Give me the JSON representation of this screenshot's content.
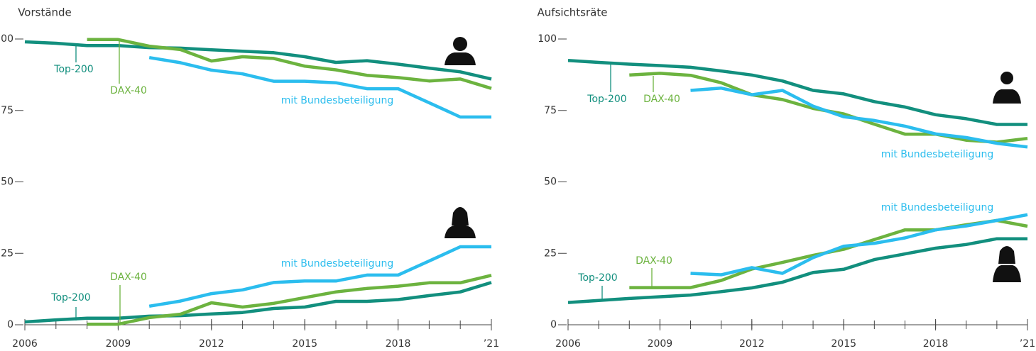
{
  "chart_data": [
    {
      "type": "line",
      "title": "Vorstände",
      "x": [
        2006,
        2007,
        2008,
        2009,
        2010,
        2011,
        2012,
        2013,
        2014,
        2015,
        2016,
        2017,
        2018,
        2019,
        2020,
        2021
      ],
      "xlim": [
        2006,
        2021
      ],
      "xticks": [
        2006,
        2009,
        2012,
        2015,
        2018,
        {
          "value": 2021,
          "label": "’21"
        }
      ],
      "ylim": [
        0,
        100
      ],
      "yticks": [
        0,
        25,
        50,
        75,
        100
      ],
      "series": [
        {
          "name": "Top-200",
          "color": "#128f7e",
          "values": [
            99,
            98.5,
            97.7,
            97.7,
            97,
            96.8,
            96.2,
            95.7,
            95.2,
            93.8,
            91.8,
            92.4,
            91.2,
            89.8,
            88.5,
            86
          ]
        },
        {
          "name": "DAX-40",
          "color": "#6cb33f",
          "values": [
            null,
            null,
            99.8,
            99.8,
            97.5,
            96.3,
            92.3,
            93.8,
            93.2,
            90.5,
            89.2,
            87.3,
            86.5,
            85.3,
            86,
            82.7
          ]
        },
        {
          "name": "mit Bundesbeteiligung",
          "color": "#2bbdee",
          "values": [
            null,
            null,
            null,
            null,
            93.5,
            91.7,
            89.1,
            87.8,
            85.2,
            85.2,
            84.7,
            82.6,
            82.6,
            77.7,
            72.7,
            72.7
          ]
        },
        {
          "name": "Top-200",
          "color": "#128f7e",
          "values": [
            1,
            1.7,
            2.3,
            2.3,
            3,
            3.2,
            3.8,
            4.3,
            5.7,
            6.2,
            8.2,
            8.2,
            8.8,
            10.2,
            11.5,
            14.8
          ]
        },
        {
          "name": "DAX-40",
          "color": "#6cb33f",
          "values": [
            null,
            null,
            0.2,
            0.2,
            2.5,
            3.7,
            7.7,
            6.2,
            7.5,
            9.5,
            11.5,
            12.7,
            13.5,
            14.7,
            14.7,
            17.3
          ]
        },
        {
          "name": "mit Bundesbeteiligung",
          "color": "#2bbdee",
          "values": [
            null,
            null,
            null,
            null,
            6.5,
            8.3,
            10.9,
            12.2,
            14.8,
            15.3,
            15.3,
            17.4,
            17.4,
            22.3,
            27.3,
            27.3
          ]
        }
      ]
    },
    {
      "type": "line",
      "title": "Aufsichtsräte",
      "x": [
        2006,
        2007,
        2008,
        2009,
        2010,
        2011,
        2012,
        2013,
        2014,
        2015,
        2016,
        2017,
        2018,
        2019,
        2020,
        2021
      ],
      "xlim": [
        2006,
        2021
      ],
      "xticks": [
        2006,
        2009,
        2012,
        2015,
        2018,
        {
          "value": 2021,
          "label": "’21"
        }
      ],
      "ylim": [
        0,
        100
      ],
      "yticks": [
        0,
        25,
        50,
        75,
        100
      ],
      "series": [
        {
          "name": "Top-200",
          "color": "#128f7e",
          "values": [
            92.5,
            91.8,
            91.2,
            90.7,
            90.1,
            88.8,
            87.4,
            85.3,
            82,
            80.8,
            78.1,
            76.2,
            73.5,
            72.1,
            70.1,
            70.1
          ]
        },
        {
          "name": "DAX-40",
          "color": "#6cb33f",
          "values": [
            null,
            null,
            87.4,
            88,
            87.3,
            84.7,
            80.5,
            78.8,
            75.7,
            73.8,
            70.2,
            66.7,
            66.7,
            64.6,
            63.9,
            65.2
          ]
        },
        {
          "name": "mit Bundesbeteiligung",
          "color": "#2bbdee",
          "values": [
            null,
            null,
            null,
            null,
            82,
            82.8,
            80.5,
            82,
            76.5,
            72.8,
            71.5,
            69.5,
            66.8,
            65.5,
            63.5,
            62.2
          ]
        },
        {
          "name": "Top-200",
          "color": "#128f7e",
          "values": [
            7.8,
            8.5,
            9.2,
            9.8,
            10.4,
            11.6,
            12.9,
            14.9,
            18.3,
            19.4,
            22.8,
            24.8,
            26.8,
            28.1,
            30.1,
            30.1
          ]
        },
        {
          "name": "DAX-40",
          "color": "#6cb33f",
          "values": [
            null,
            null,
            13,
            13,
            13,
            15.5,
            19.5,
            21.8,
            24.3,
            26.4,
            29.8,
            33.2,
            33.2,
            35,
            36.5,
            34.5
          ]
        },
        {
          "name": "mit Bundesbeteiligung",
          "color": "#2bbdee",
          "values": [
            null,
            null,
            null,
            null,
            18,
            17.5,
            20,
            18,
            23.5,
            27.5,
            28.5,
            30.4,
            33.2,
            34.6,
            36.5,
            38.5
          ]
        }
      ]
    }
  ]
}
